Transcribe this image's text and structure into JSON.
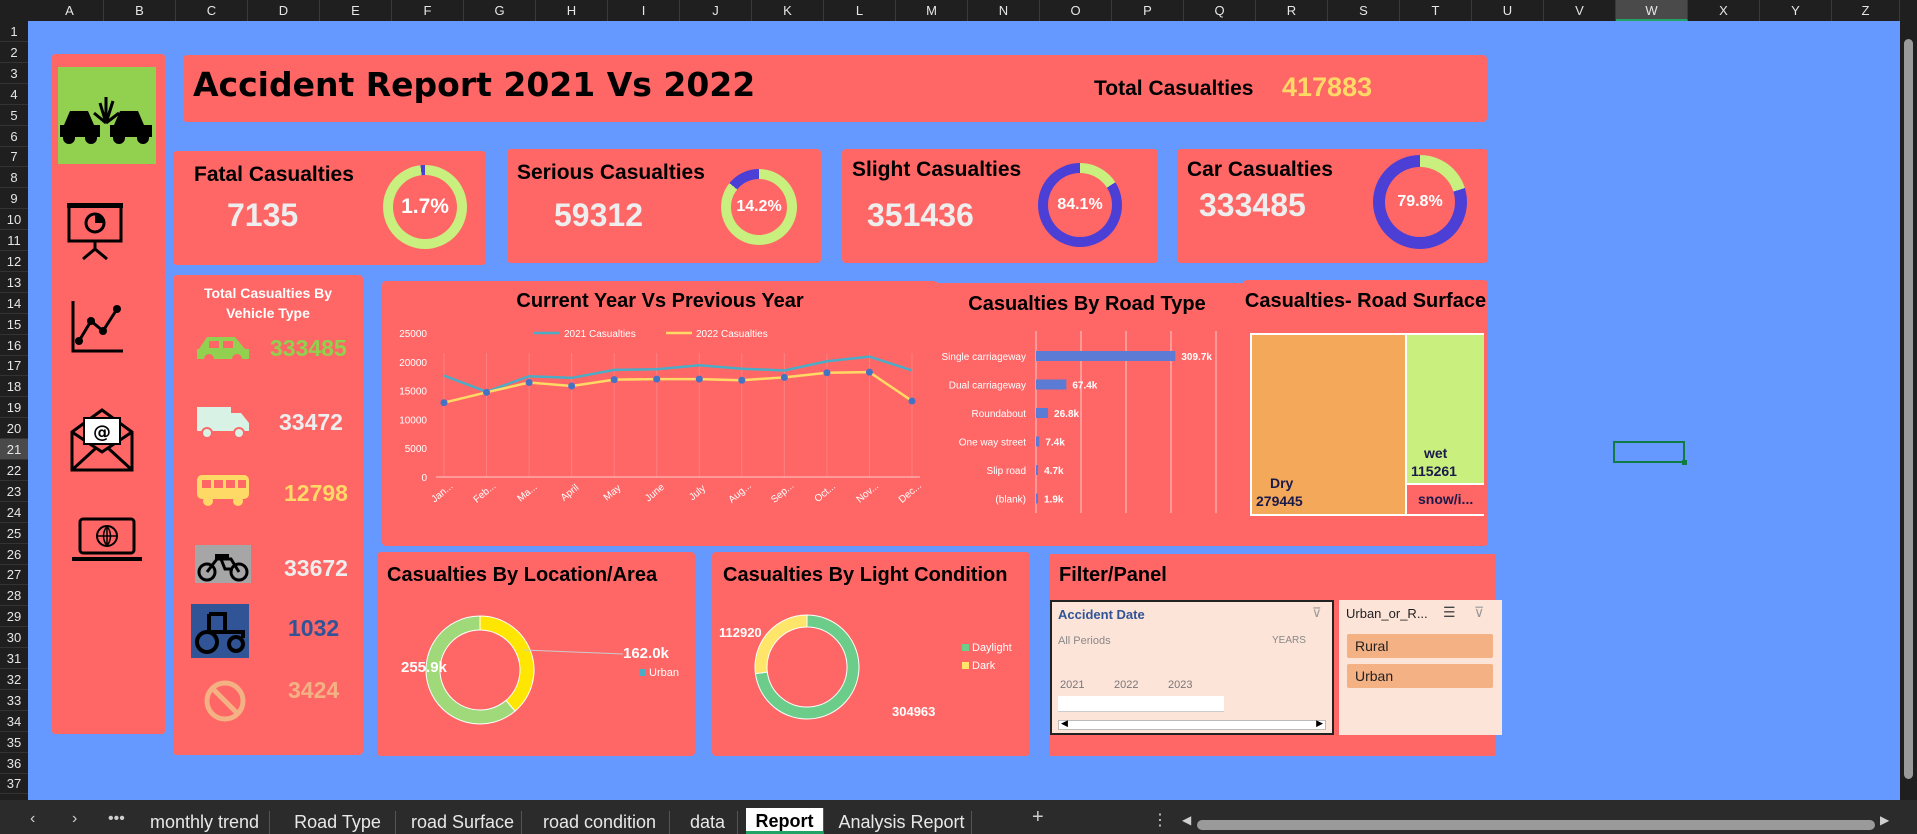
{
  "column_headers": [
    "A",
    "B",
    "C",
    "D",
    "E",
    "F",
    "G",
    "H",
    "I",
    "J",
    "K",
    "L",
    "M",
    "N",
    "O",
    "P",
    "Q",
    "R",
    "S",
    "T",
    "U",
    "V",
    "W",
    "X",
    "Y",
    "Z"
  ],
  "row_headers": [
    "1",
    "2",
    "3",
    "4",
    "5",
    "6",
    "7",
    "8",
    "9",
    "10",
    "11",
    "12",
    "13",
    "14",
    "15",
    "16",
    "17",
    "18",
    "19",
    "20",
    "21",
    "22",
    "23",
    "24",
    "25",
    "26",
    "27",
    "28",
    "29",
    "30",
    "31",
    "32",
    "33",
    "34",
    "35",
    "36",
    "37"
  ],
  "selected_column": "W",
  "selected_row": "21",
  "header": {
    "title": "Accident Report 2021 Vs 2022",
    "total_label": "Total Casualties",
    "total_value": "417883"
  },
  "kpis": [
    {
      "label": "Fatal Casualties",
      "value": "7135",
      "pct": "1.7%",
      "fraction": 0.017
    },
    {
      "label": "Serious Casualties",
      "value": "59312",
      "pct": "14.2%",
      "fraction": 0.142
    },
    {
      "label": "Slight Casualties",
      "value": "351436",
      "pct": "84.1%",
      "fraction": 0.841
    },
    {
      "label": "Car Casualties",
      "value": "333485",
      "pct": "79.8%",
      "fraction": 0.798
    }
  ],
  "vehicles": {
    "title": "Total Casualties By Vehicle Type",
    "items": [
      {
        "icon": "car-icon",
        "value": "333485",
        "color": "#92d050"
      },
      {
        "icon": "van-icon",
        "value": "33472",
        "color": "#d9f2e6"
      },
      {
        "icon": "bus-icon",
        "value": "12798",
        "color": "#ffd966"
      },
      {
        "icon": "motorcycle-icon",
        "value": "33672",
        "color": "#eeeeee"
      },
      {
        "icon": "agricultural-vehicle-icon",
        "value": "1032",
        "color": "#305496"
      },
      {
        "icon": "no-entry-icon",
        "value": "3424",
        "color": "#f4b183"
      }
    ]
  },
  "charts": {
    "line_title": "Current Year Vs Previous Year",
    "road_type_title": "Casualties By Road Type",
    "surface_title": "Casualties- Road Surface",
    "location_title": "Casualties By Location/Area",
    "light_title": "Casualties By Light Condition"
  },
  "chart_data": [
    {
      "type": "line",
      "title": "Current Year Vs Previous Year",
      "categories": [
        "Jan...",
        "Feb...",
        "Ma...",
        "April",
        "May",
        "June",
        "July",
        "Aug...",
        "Sep...",
        "Oct...",
        "Nov...",
        "Dec..."
      ],
      "ylim": [
        0,
        25000
      ],
      "yticks": [
        "25000",
        "20000",
        "15000",
        "10000",
        "5000",
        "0"
      ],
      "series": [
        {
          "name": "2021 Casualties",
          "color": "#4bacc6",
          "values": [
            17600,
            14800,
            17500,
            17200,
            18600,
            18700,
            19400,
            18800,
            18500,
            20100,
            20900,
            18500
          ]
        },
        {
          "name": "2022 Casualties",
          "color": "#ffd966",
          "values": [
            12900,
            14700,
            16400,
            15800,
            16900,
            17000,
            17000,
            16800,
            17300,
            18100,
            18200,
            13200
          ]
        }
      ]
    },
    {
      "type": "bar",
      "title": "Casualties By Road Type",
      "categories": [
        "Single carriageway",
        "Dual carriageway",
        "Roundabout",
        "One way street",
        "Slip road",
        "(blank)"
      ],
      "values": [
        309.7,
        67.4,
        26.8,
        7.4,
        4.7,
        1.9
      ],
      "labels": [
        "309.7k",
        "67.4k",
        "26.8k",
        "7.4k",
        "4.7k",
        "1.9k"
      ],
      "xlim": [
        0,
        400
      ]
    },
    {
      "type": "treemap",
      "title": "Casualties- Road Surface",
      "items": [
        {
          "name": "Dry",
          "value": 279445,
          "label": "279445",
          "color": "#f4a85a"
        },
        {
          "name": "wet",
          "value": 115261,
          "label": "115261",
          "color": "#c9ef7f"
        },
        {
          "name": "snow/i...",
          "value": 23177,
          "label": "",
          "color": "#ff6666"
        }
      ]
    },
    {
      "type": "pie",
      "title": "Casualties By Location/Area",
      "slices": [
        {
          "name": "Urban",
          "value": 255.9,
          "label": "255.9k"
        },
        {
          "name": "Rural",
          "value": 162.0,
          "label": "162.0k"
        }
      ],
      "legend": [
        "Urban"
      ]
    },
    {
      "type": "pie",
      "title": "Casualties By Light Condition",
      "slices": [
        {
          "name": "Daylight",
          "value": 304963,
          "label": "304963"
        },
        {
          "name": "Dark",
          "value": 112920,
          "label": "112920"
        }
      ],
      "legend": [
        "Daylight",
        "Dark"
      ]
    }
  ],
  "filter": {
    "title": "Filter/Panel",
    "date_slicer": {
      "title": "Accident Date",
      "period": "All Periods",
      "unit": "YEARS",
      "years": [
        "2021",
        "2022",
        "2023"
      ]
    },
    "area_slicer": {
      "title": "Urban_or_R...",
      "options": [
        "Rural",
        "Urban"
      ]
    }
  },
  "tabs": [
    "monthly trend",
    "Road Type",
    "road Surface",
    "road condition",
    "data",
    "Report",
    "Analysis Report"
  ],
  "active_tab": "Report",
  "sidebar_icons": [
    "car-crash-icon",
    "presentation-icon",
    "line-chart-icon",
    "email-icon",
    "laptop-globe-icon"
  ]
}
